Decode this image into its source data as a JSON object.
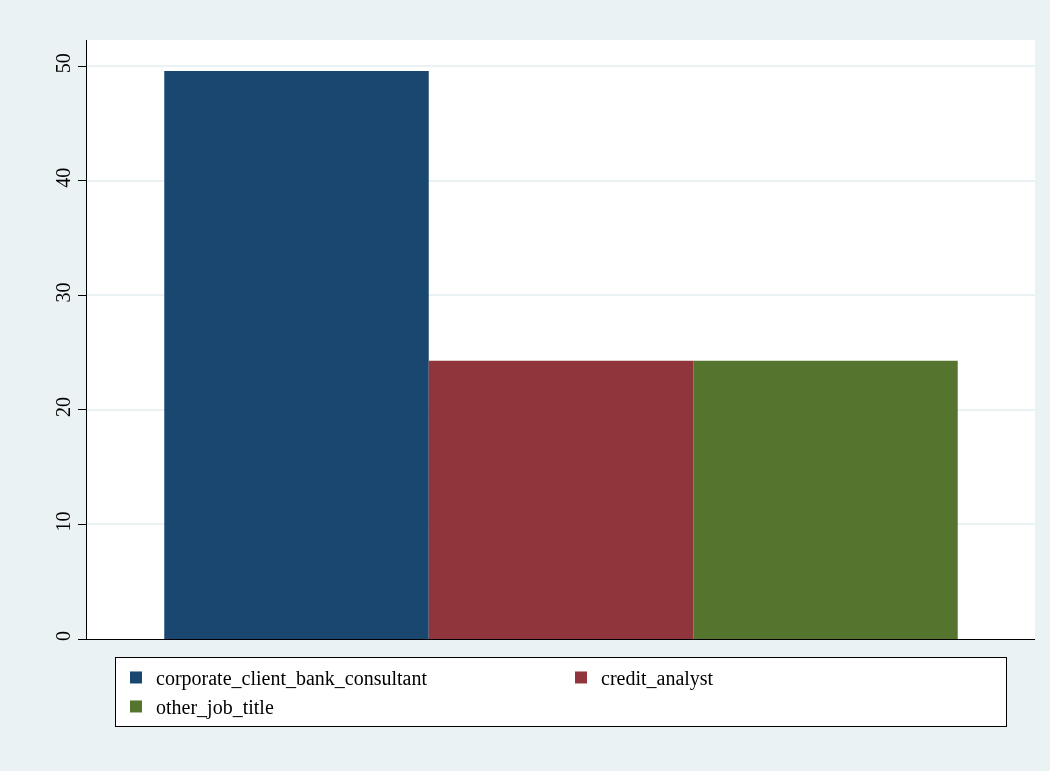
{
  "chart_data": {
    "type": "bar",
    "categories": [
      null
    ],
    "series": [
      {
        "name": "corporate_client_bank_consultant",
        "color": "#1a476f",
        "values": [
          49.6
        ]
      },
      {
        "name": "credit_analyst",
        "color": "#90353b",
        "values": [
          24.3
        ]
      },
      {
        "name": "other_job_title",
        "color": "#55752f",
        "values": [
          24.3
        ]
      }
    ],
    "ylim": [
      0,
      52.3
    ],
    "yticks": [
      0,
      10,
      20,
      30,
      40,
      50
    ],
    "grid": "y",
    "legend": "bottom",
    "tick_labels": "y"
  }
}
